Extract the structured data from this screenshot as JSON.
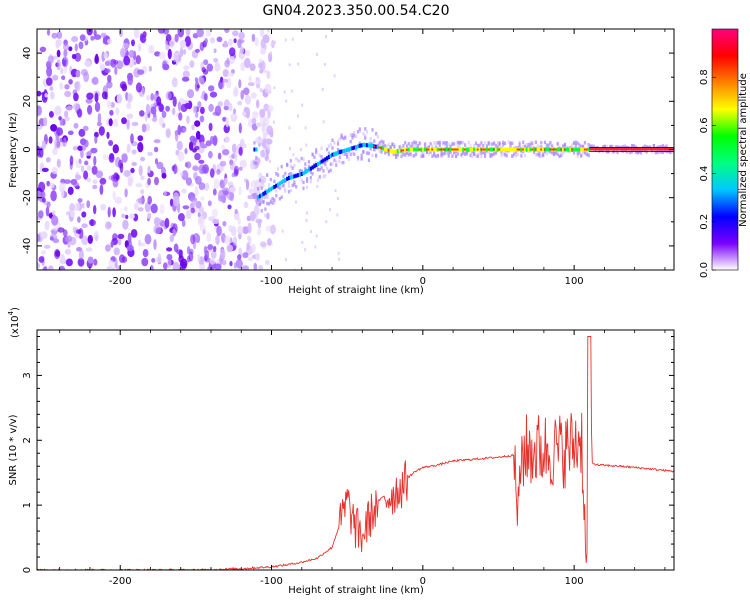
{
  "title": "GN04.2023.350.00.54.C20",
  "chart_data": [
    {
      "type": "heatmap",
      "xlabel": "Height of straight line (km)",
      "ylabel": "Frequency (Hz)",
      "xlim": [
        -255,
        166
      ],
      "ylim": [
        -50,
        50
      ],
      "xticks": [
        -200,
        -100,
        0,
        100
      ],
      "yticks": [
        -40,
        -20,
        0,
        20,
        40
      ],
      "colorbar": {
        "label": "Normalized spectral amplitude",
        "range": [
          0,
          1
        ],
        "ticks": [
          "0.0",
          "0.2",
          "0.4",
          "0.6",
          "0.8"
        ],
        "colormap": [
          "#ffffff",
          "#7a00ff",
          "#0000ff",
          "#00c8ff",
          "#00ff80",
          "#00ff00",
          "#ffff00",
          "#ff8000",
          "#ff0000",
          "#ff0080"
        ]
      },
      "ridge": {
        "x": [
          -110,
          -100,
          -90,
          -80,
          -70,
          -60,
          -50,
          -40,
          -30,
          -20,
          -10,
          0,
          50,
          100,
          110,
          166
        ],
        "frequency": [
          -20,
          -16,
          -12,
          -10,
          -6,
          -2,
          0,
          2,
          1,
          -1,
          0,
          0,
          0,
          0,
          0,
          0
        ]
      },
      "noise_region_x": [
        -255,
        -105
      ]
    },
    {
      "type": "line",
      "xlabel": "Height of straight line (km)",
      "ylabel": "SNR (10 * v/v)",
      "yscale_label": "(x10",
      "yscale_exp": "4",
      "yscale_close": ")",
      "xlim": [
        -255,
        166
      ],
      "ylim": [
        0,
        3.7
      ],
      "xticks": [
        -200,
        -100,
        0,
        100
      ],
      "yticks": [
        0,
        1,
        2,
        3
      ],
      "color": "#e8302a",
      "x": [
        -255,
        -150,
        -120,
        -100,
        -90,
        -80,
        -70,
        -60,
        -55,
        -50,
        -45,
        -40,
        -35,
        -30,
        -25,
        -20,
        -15,
        -10,
        -5,
        0,
        10,
        20,
        30,
        40,
        50,
        60,
        63,
        64,
        65,
        70,
        75,
        80,
        85,
        90,
        95,
        100,
        105,
        108,
        110,
        112,
        115,
        130,
        145,
        166
      ],
      "y": [
        0.0,
        0.0,
        0.02,
        0.05,
        0.08,
        0.12,
        0.18,
        0.35,
        0.7,
        1.1,
        0.7,
        0.55,
        0.85,
        1.05,
        1.15,
        1.2,
        1.3,
        1.42,
        1.52,
        1.58,
        1.62,
        1.68,
        1.7,
        1.72,
        1.74,
        1.77,
        1.0,
        1.1,
        1.85,
        1.9,
        1.9,
        1.92,
        1.9,
        1.9,
        1.92,
        2.0,
        2.1,
        0.1,
        3.6,
        1.65,
        1.62,
        1.6,
        1.57,
        1.52
      ],
      "oscillation_ranges": [
        [
          -55,
          -30
        ],
        [
          -25,
          -10
        ],
        [
          60,
          110
        ]
      ]
    }
  ]
}
